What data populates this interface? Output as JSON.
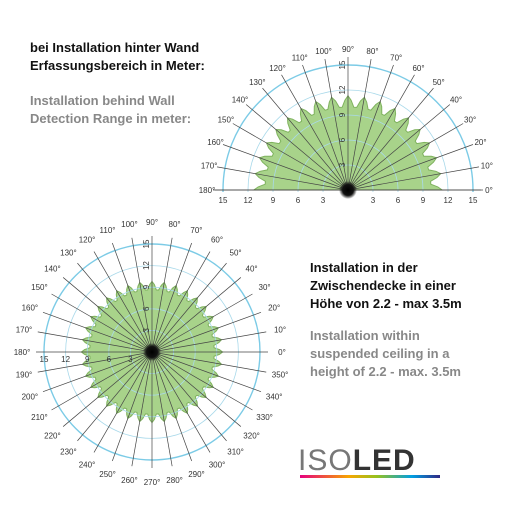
{
  "intro": {
    "german": [
      "bei Installation hinter Wand",
      "Erfassungsbereich in Meter:"
    ],
    "english": [
      "Installation behind Wall",
      "Detection Range in meter:"
    ]
  },
  "ceiling": {
    "german": [
      "Installation in der",
      "Zwischendecke in einer",
      "Höhe von 2.2 - max 3.5m"
    ],
    "english": [
      "Installation within",
      "suspended ceiling in a",
      "height of 2.2 - max. 3.5m"
    ]
  },
  "diagrams": [
    {
      "angle_labels": [
        "0°",
        "10°",
        "20°",
        "30°",
        "40°",
        "50°",
        "60°",
        "70°",
        "80°",
        "90°",
        "100°",
        "110°",
        "120°",
        "130°",
        "140°",
        "150°",
        "160°",
        "170°",
        "180°"
      ],
      "range_labels_left": [
        "15",
        "12",
        "9",
        "6",
        "3"
      ],
      "range_labels_right": [
        "3",
        "6",
        "9",
        "12",
        "15"
      ],
      "range_labels_vertical": [
        "3",
        "6",
        "9",
        "12",
        "15"
      ]
    },
    {
      "angle_labels": [
        "0°",
        "10°",
        "20°",
        "30°",
        "40°",
        "50°",
        "60°",
        "70°",
        "80°",
        "90°",
        "100°",
        "110°",
        "120°",
        "130°",
        "140°",
        "150°",
        "160°",
        "170°",
        "180°",
        "190°",
        "200°",
        "210°",
        "220°",
        "230°",
        "240°",
        "250°",
        "260°",
        "270°",
        "280°",
        "290°",
        "300°",
        "310°",
        "320°",
        "330°",
        "340°",
        "350°"
      ],
      "range_labels_left": [
        "15",
        "12",
        "9",
        "6",
        "3"
      ],
      "range_labels_vertical": [
        "3",
        "6",
        "9",
        "12",
        "15"
      ]
    }
  ],
  "logo": [
    "ISO",
    "LED"
  ]
}
